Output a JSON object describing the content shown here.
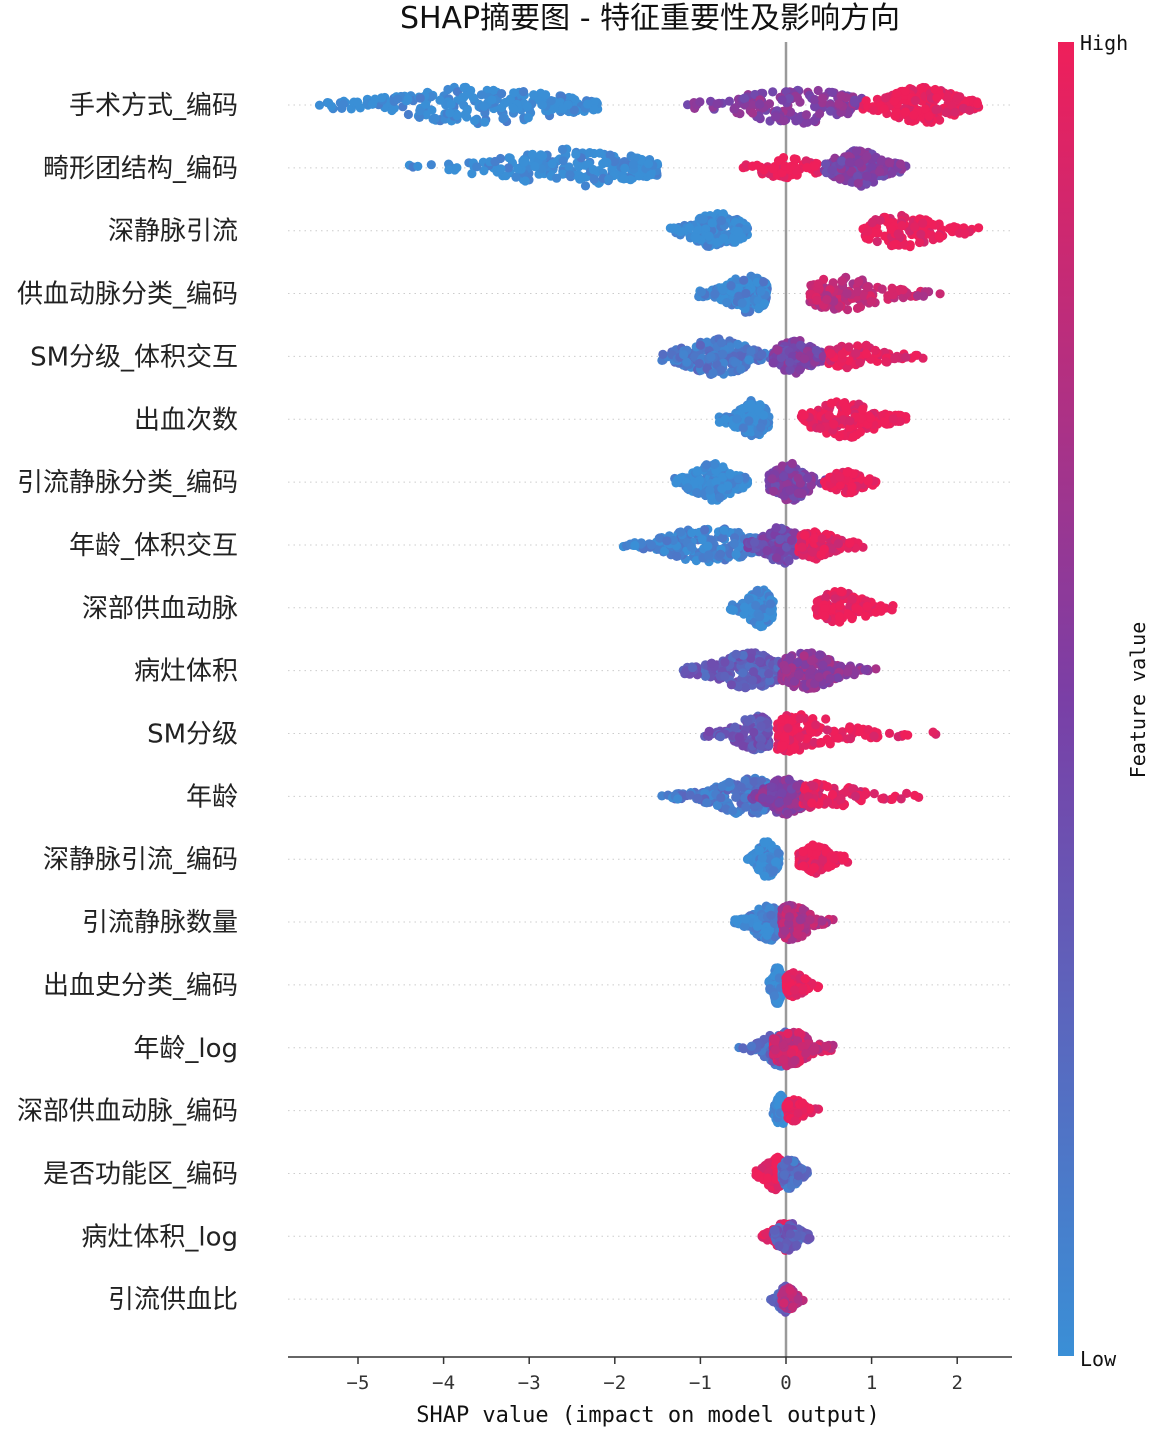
{
  "chart_data": {
    "type": "scatter",
    "subtype": "shap-beeswarm",
    "title": "SHAP摘要图 - 特征重要性及影响方向",
    "xlabel": "SHAP value (impact on model output)",
    "xlim": [
      -5.85,
      2.65
    ],
    "xticks": [
      -5,
      -4,
      -3,
      -2,
      -1,
      0,
      1,
      2
    ],
    "xtick_labels": [
      "−5",
      "−4",
      "−3",
      "−2",
      "−1",
      "0",
      "1",
      "2"
    ],
    "colorbar": {
      "label": "Feature value",
      "high": "High",
      "low": "Low",
      "low_color": "#3a8fd6",
      "mid_color": "#7a3fa6",
      "high_color": "#ef1f5a"
    },
    "features": [
      {
        "name": "手术方式_编码",
        "clusters": [
          {
            "min": -5.45,
            "max": -2.2,
            "center": -3.6,
            "value": 0.0,
            "n": 240
          },
          {
            "min": -1.15,
            "max": 0.9,
            "center": 0.1,
            "value": 0.55,
            "n": 150
          },
          {
            "min": 0.9,
            "max": 2.25,
            "center": 1.6,
            "value": 1.0,
            "n": 220
          }
        ]
      },
      {
        "name": "畸形团结构_编码",
        "clusters": [
          {
            "min": -4.4,
            "max": -1.5,
            "center": -2.5,
            "value": 0.0,
            "n": 200
          },
          {
            "min": -0.5,
            "max": 0.5,
            "center": 0.0,
            "value": 1.0,
            "n": 70
          },
          {
            "min": 0.45,
            "max": 1.4,
            "center": 0.85,
            "value": 0.5,
            "n": 190
          }
        ]
      },
      {
        "name": "深静脉引流",
        "clusters": [
          {
            "min": -1.35,
            "max": -0.45,
            "center": -0.8,
            "value": 0.0,
            "n": 190
          },
          {
            "min": 0.9,
            "max": 2.25,
            "center": 1.35,
            "value": 1.0,
            "n": 130
          }
        ]
      },
      {
        "name": "供血动脉分类_编码",
        "clusters": [
          {
            "min": -1.02,
            "max": -0.22,
            "center": -0.45,
            "value": 0.05,
            "n": 200
          },
          {
            "min": 0.28,
            "max": 1.8,
            "center": 0.65,
            "value": 0.8,
            "n": 130
          }
        ]
      },
      {
        "name": "SM分级_体积交互",
        "clusters": [
          {
            "min": -1.45,
            "max": -0.15,
            "center": -0.8,
            "value": 0.15,
            "n": 200
          },
          {
            "min": -0.15,
            "max": 0.55,
            "center": 0.1,
            "value": 0.5,
            "n": 140
          },
          {
            "min": 0.5,
            "max": 1.6,
            "center": 0.8,
            "value": 0.95,
            "n": 90
          }
        ]
      },
      {
        "name": "出血次数",
        "clusters": [
          {
            "min": -0.78,
            "max": -0.2,
            "center": -0.4,
            "value": 0.0,
            "n": 170
          },
          {
            "min": 0.18,
            "max": 1.4,
            "center": 0.7,
            "value": 1.0,
            "n": 170
          }
        ]
      },
      {
        "name": "引流静脉分类_编码",
        "clusters": [
          {
            "min": -1.3,
            "max": -0.45,
            "center": -0.85,
            "value": 0.0,
            "n": 180
          },
          {
            "min": -0.2,
            "max": 0.5,
            "center": 0.05,
            "value": 0.5,
            "n": 150
          },
          {
            "min": 0.45,
            "max": 1.05,
            "center": 0.7,
            "value": 1.0,
            "n": 80
          }
        ]
      },
      {
        "name": "年龄_体积交互",
        "clusters": [
          {
            "min": -1.9,
            "max": -0.3,
            "center": -0.9,
            "value": 0.05,
            "n": 220
          },
          {
            "min": -0.45,
            "max": 0.25,
            "center": -0.05,
            "value": 0.45,
            "n": 170
          },
          {
            "min": 0.15,
            "max": 0.9,
            "center": 0.35,
            "value": 0.95,
            "n": 110
          }
        ]
      },
      {
        "name": "深部供血动脉",
        "clusters": [
          {
            "min": -0.65,
            "max": -0.15,
            "center": -0.3,
            "value": 0.0,
            "n": 170
          },
          {
            "min": 0.35,
            "max": 1.25,
            "center": 0.65,
            "value": 1.0,
            "n": 140
          }
        ]
      },
      {
        "name": "病灶体积",
        "clusters": [
          {
            "min": -1.2,
            "max": 0.0,
            "center": -0.45,
            "value": 0.3,
            "n": 240
          },
          {
            "min": -0.05,
            "max": 1.05,
            "center": 0.25,
            "value": 0.6,
            "n": 170
          }
        ]
      },
      {
        "name": "SM分级",
        "clusters": [
          {
            "min": -0.95,
            "max": -0.2,
            "center": -0.35,
            "value": 0.35,
            "n": 140
          },
          {
            "min": -0.1,
            "max": 1.75,
            "center": 0.15,
            "value": 1.0,
            "n": 150
          }
        ]
      },
      {
        "name": "年龄",
        "clusters": [
          {
            "min": -1.45,
            "max": -0.2,
            "center": -0.45,
            "value": 0.15,
            "n": 230
          },
          {
            "min": -0.4,
            "max": 0.35,
            "center": 0.0,
            "value": 0.55,
            "n": 180
          },
          {
            "min": 0.2,
            "max": 1.55,
            "center": 0.45,
            "value": 0.95,
            "n": 100
          }
        ]
      },
      {
        "name": "深静脉引流_编码",
        "clusters": [
          {
            "min": -0.45,
            "max": -0.08,
            "center": -0.22,
            "value": 0.0,
            "n": 170
          },
          {
            "min": 0.15,
            "max": 0.72,
            "center": 0.35,
            "value": 1.0,
            "n": 110
          }
        ]
      },
      {
        "name": "引流静脉数量",
        "clusters": [
          {
            "min": -0.6,
            "max": 0.0,
            "center": -0.2,
            "value": 0.05,
            "n": 170
          },
          {
            "min": -0.05,
            "max": 0.55,
            "center": 0.08,
            "value": 0.75,
            "n": 150
          }
        ]
      },
      {
        "name": "出血史分类_编码",
        "clusters": [
          {
            "min": -0.2,
            "max": 0.0,
            "center": -0.1,
            "value": 0.0,
            "n": 150
          },
          {
            "min": 0.0,
            "max": 0.38,
            "center": 0.1,
            "value": 1.0,
            "n": 90
          }
        ]
      },
      {
        "name": "年龄_log",
        "clusters": [
          {
            "min": -0.55,
            "max": 0.1,
            "center": -0.05,
            "value": 0.2,
            "n": 150
          },
          {
            "min": -0.15,
            "max": 0.55,
            "center": 0.05,
            "value": 0.85,
            "n": 150
          }
        ]
      },
      {
        "name": "深部供血动脉_编码",
        "clusters": [
          {
            "min": -0.15,
            "max": 0.0,
            "center": -0.06,
            "value": 0.0,
            "n": 120
          },
          {
            "min": 0.0,
            "max": 0.38,
            "center": 0.1,
            "value": 1.0,
            "n": 80
          }
        ]
      },
      {
        "name": "是否功能区_编码",
        "clusters": [
          {
            "min": -0.35,
            "max": 0.05,
            "center": -0.12,
            "value": 1.0,
            "n": 130
          },
          {
            "min": -0.05,
            "max": 0.25,
            "center": 0.05,
            "value": 0.2,
            "n": 120
          }
        ]
      },
      {
        "name": "病灶体积_log",
        "clusters": [
          {
            "min": -0.28,
            "max": 0.12,
            "center": -0.02,
            "value": 0.9,
            "n": 110
          },
          {
            "min": -0.15,
            "max": 0.28,
            "center": 0.02,
            "value": 0.3,
            "n": 110
          }
        ]
      },
      {
        "name": "引流供血比",
        "clusters": [
          {
            "min": -0.18,
            "max": 0.05,
            "center": -0.02,
            "value": 0.25,
            "n": 100
          },
          {
            "min": -0.05,
            "max": 0.2,
            "center": 0.03,
            "value": 0.75,
            "n": 80
          }
        ]
      }
    ]
  }
}
